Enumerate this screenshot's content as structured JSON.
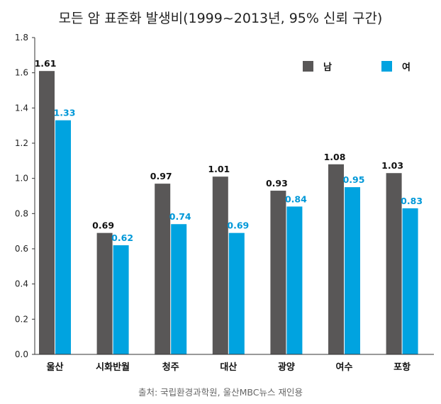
{
  "chart_data": {
    "type": "bar",
    "title": "모든 암 표준화 발생비(1999~2013년, 95% 신뢰 구간)",
    "categories": [
      "울산",
      "시화반월",
      "청주",
      "대산",
      "광양",
      "여수",
      "포항"
    ],
    "series": [
      {
        "name": "남",
        "color": "#595757",
        "label_color": "#111111",
        "values": [
          1.61,
          0.69,
          0.97,
          1.01,
          0.93,
          1.08,
          1.03
        ],
        "labels": [
          "1.61",
          "0.69",
          "0.97",
          "1.01",
          "0.93",
          "1.08",
          "1.03"
        ]
      },
      {
        "name": "여",
        "color": "#00a3e0",
        "label_color": "#0098d8",
        "values": [
          1.33,
          0.62,
          0.74,
          0.69,
          0.84,
          0.95,
          0.83
        ],
        "labels": [
          "1.33",
          "0.62",
          "0.74",
          "0.69",
          "0.84",
          "0.95",
          "0.83"
        ]
      }
    ],
    "ylim": [
      0,
      1.8
    ],
    "yticks": [
      "0.0",
      "0.2",
      "0.4",
      "0.6",
      "0.8",
      "1.0",
      "1.2",
      "1.4",
      "1.6",
      "1.8"
    ],
    "xlabel": "",
    "ylabel": "",
    "grid": false,
    "legend_position": "top-right",
    "source": "출처: 국립환경과학원, 울산MBC뉴스 재인용"
  }
}
